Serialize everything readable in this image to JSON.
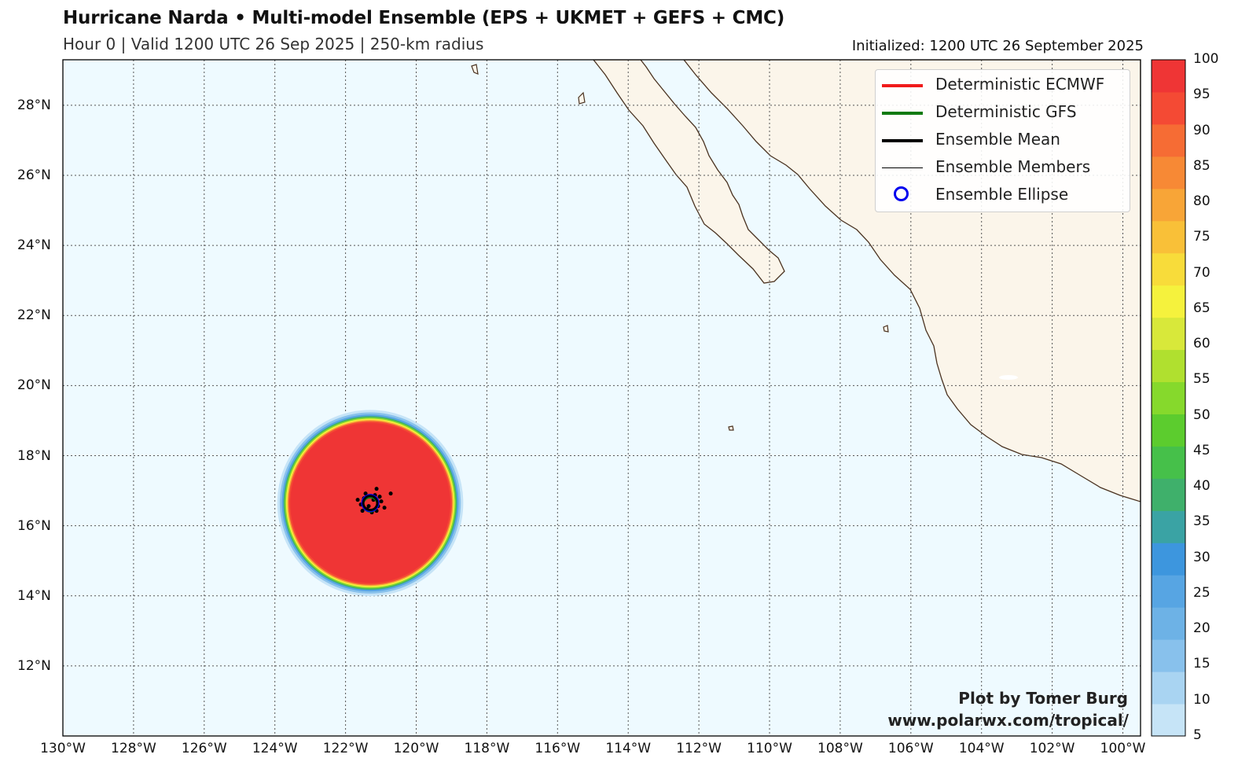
{
  "title": "Hurricane Narda • Multi-model Ensemble (EPS + UKMET + GEFS + CMC)",
  "subtitle": "Hour 0 | Valid 1200 UTC 26 Sep 2025 | 250-km radius",
  "initialized": "Initialized: 1200 UTC 26 September 2025",
  "credit": {
    "line1": "Plot by Tomer Burg",
    "line2": "www.polarwx.com/tropical/"
  },
  "legend": [
    {
      "label": "Deterministic ECMWF",
      "color": "#f01a1a",
      "style": "thick-line"
    },
    {
      "label": "Deterministic GFS",
      "color": "#117a11",
      "style": "thick-line"
    },
    {
      "label": "Ensemble Mean",
      "color": "#000000",
      "style": "thick-line"
    },
    {
      "label": "Ensemble Members",
      "color": "#000000",
      "style": "thin-line"
    },
    {
      "label": "Ensemble Ellipse",
      "color": "#0000ee",
      "style": "circle"
    }
  ],
  "map": {
    "lon_range": [
      -130,
      -99.5
    ],
    "lat_range": [
      10,
      29.3
    ],
    "lon_ticks": [
      "130°W",
      "128°W",
      "126°W",
      "124°W",
      "122°W",
      "120°W",
      "118°W",
      "116°W",
      "114°W",
      "112°W",
      "110°W",
      "108°W",
      "106°W",
      "104°W",
      "102°W",
      "100°W"
    ],
    "lat_ticks": [
      "12°N",
      "14°N",
      "16°N",
      "18°N",
      "20°N",
      "22°N",
      "24°N",
      "26°N",
      "28°N"
    ],
    "ocean_color": "#eefaff",
    "land_color": "#fbf5ea",
    "coast_color": "#4a3220",
    "storm_center": {
      "lon": -121.3,
      "lat": 16.65
    },
    "strike_radius_deg": 2.35
  },
  "colorbar": {
    "labels": [
      "5",
      "10",
      "15",
      "20",
      "25",
      "30",
      "35",
      "40",
      "45",
      "50",
      "55",
      "60",
      "65",
      "70",
      "75",
      "80",
      "85",
      "90",
      "95",
      "100"
    ],
    "colors": [
      "#c6e4f7",
      "#a9d4f2",
      "#88c1ec",
      "#6db2e6",
      "#57a5e3",
      "#3d96de",
      "#3aa3a4",
      "#3fb06b",
      "#46c04a",
      "#5ccc2e",
      "#86d92c",
      "#b0e02f",
      "#d8e83a",
      "#f5f23d",
      "#f8dc3a",
      "#f9c038",
      "#f8a537",
      "#f78935",
      "#f66c34",
      "#f44a34",
      "#ef3535"
    ]
  }
}
